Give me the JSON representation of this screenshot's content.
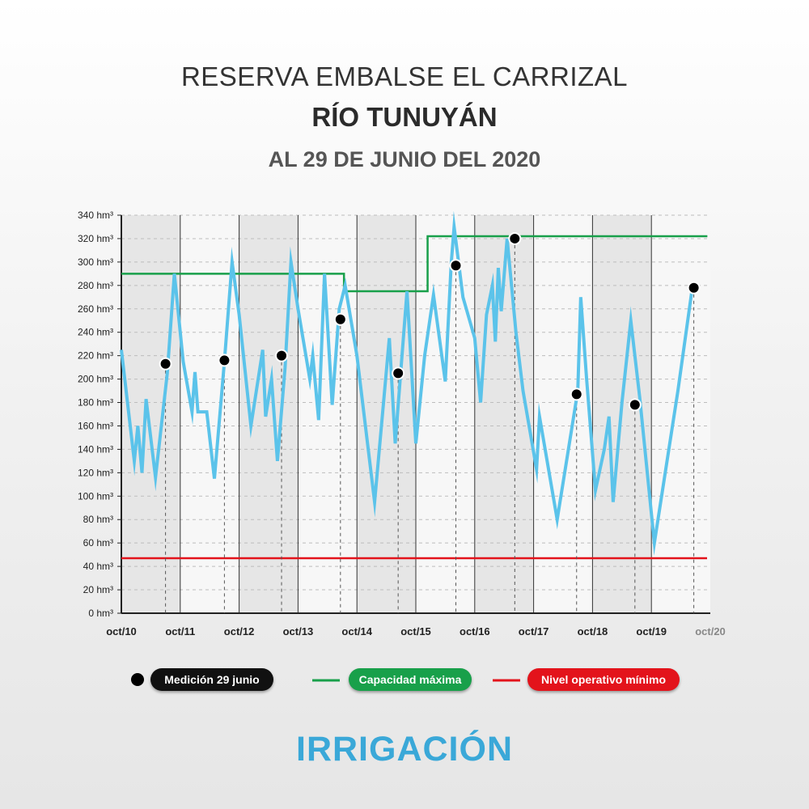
{
  "header": {
    "title": "RESERVA EMBALSE EL CARRIZAL",
    "subtitle": "RÍO TUNUYÁN",
    "date": "AL 29 DE JUNIO DEL 2020"
  },
  "colors": {
    "series": "#5bc3ea",
    "capacity": "#18a04a",
    "minimum": "#e3131b",
    "point": "#000000",
    "band": "#e6e6e6",
    "brand": "#3aa8d8"
  },
  "chart_data": {
    "type": "line",
    "ylim": [
      0,
      340
    ],
    "ylabel_unit": "hm³",
    "y_ticks": [
      "0 hm³",
      "20 hm³",
      "40 hm³",
      "60 hm³",
      "80 hm³",
      "100 hm³",
      "120 hm³",
      "140 hm³",
      "160 hm³",
      "180 hm³",
      "200 hm³",
      "220 hm³",
      "240 hm³",
      "260 hm³",
      "280 hm³",
      "300 hm³",
      "320 hm³",
      "340 hm³"
    ],
    "x_ticks": [
      "oct/10",
      "oct/11",
      "oct/12",
      "oct/13",
      "oct/14",
      "oct/15",
      "oct/16",
      "oct/17",
      "oct/18",
      "oct/19",
      "oct/20"
    ],
    "xlim": [
      0,
      10
    ],
    "series": [
      {
        "name": "Reserva",
        "points": [
          [
            0.0,
            225
          ],
          [
            0.22,
            130
          ],
          [
            0.28,
            160
          ],
          [
            0.35,
            120
          ],
          [
            0.42,
            183
          ],
          [
            0.58,
            116
          ],
          [
            0.78,
            205
          ],
          [
            0.9,
            290
          ],
          [
            1.05,
            215
          ],
          [
            1.2,
            172
          ],
          [
            1.25,
            206
          ],
          [
            1.3,
            172
          ],
          [
            1.45,
            172
          ],
          [
            1.58,
            115
          ],
          [
            1.75,
            215
          ],
          [
            1.88,
            300
          ],
          [
            2.0,
            255
          ],
          [
            2.2,
            160
          ],
          [
            2.4,
            225
          ],
          [
            2.45,
            168
          ],
          [
            2.55,
            200
          ],
          [
            2.65,
            130
          ],
          [
            2.78,
            210
          ],
          [
            2.88,
            300
          ],
          [
            3.0,
            260
          ],
          [
            3.2,
            200
          ],
          [
            3.25,
            220
          ],
          [
            3.35,
            165
          ],
          [
            3.45,
            290
          ],
          [
            3.58,
            178
          ],
          [
            3.7,
            260
          ],
          [
            3.8,
            280
          ],
          [
            4.0,
            220
          ],
          [
            4.3,
            95
          ],
          [
            4.55,
            235
          ],
          [
            4.65,
            145
          ],
          [
            4.75,
            210
          ],
          [
            4.85,
            275
          ],
          [
            5.0,
            145
          ],
          [
            5.15,
            220
          ],
          [
            5.3,
            272
          ],
          [
            5.5,
            198
          ],
          [
            5.6,
            298
          ],
          [
            5.65,
            330
          ],
          [
            5.8,
            270
          ],
          [
            6.0,
            235
          ],
          [
            6.1,
            180
          ],
          [
            6.2,
            255
          ],
          [
            6.3,
            280
          ],
          [
            6.35,
            232
          ],
          [
            6.4,
            295
          ],
          [
            6.45,
            258
          ],
          [
            6.55,
            320
          ],
          [
            6.7,
            240
          ],
          [
            6.82,
            190
          ],
          [
            7.05,
            123
          ],
          [
            7.1,
            168
          ],
          [
            7.4,
            80
          ],
          [
            7.75,
            190
          ],
          [
            7.8,
            270
          ],
          [
            7.9,
            200
          ],
          [
            8.05,
            105
          ],
          [
            8.2,
            140
          ],
          [
            8.28,
            168
          ],
          [
            8.35,
            95
          ],
          [
            8.5,
            180
          ],
          [
            8.65,
            250
          ],
          [
            8.8,
            185
          ],
          [
            9.05,
            60
          ],
          [
            9.45,
            190
          ],
          [
            9.7,
            280
          ]
        ]
      },
      {
        "name": "Capacidad máxima",
        "steps": [
          [
            0,
            290
          ],
          [
            3.78,
            290
          ],
          [
            3.78,
            275
          ],
          [
            5.2,
            275
          ],
          [
            5.2,
            322
          ],
          [
            10,
            322
          ]
        ]
      },
      {
        "name": "Nivel operativo mínimo",
        "value": 47
      },
      {
        "name": "Medición 29 junio",
        "markers": [
          [
            0.75,
            213
          ],
          [
            1.75,
            216
          ],
          [
            2.72,
            220
          ],
          [
            3.72,
            251
          ],
          [
            4.7,
            205
          ],
          [
            5.68,
            297
          ],
          [
            6.68,
            320
          ],
          [
            7.73,
            187
          ],
          [
            8.72,
            178
          ],
          [
            9.72,
            278
          ]
        ]
      }
    ]
  },
  "legend": {
    "measurement": "Medición 29 junio",
    "capacity": "Capacidad máxima",
    "minimum": "Nivel operativo mínimo"
  },
  "brand": {
    "logo_text": "IRRIGACIÓN"
  }
}
